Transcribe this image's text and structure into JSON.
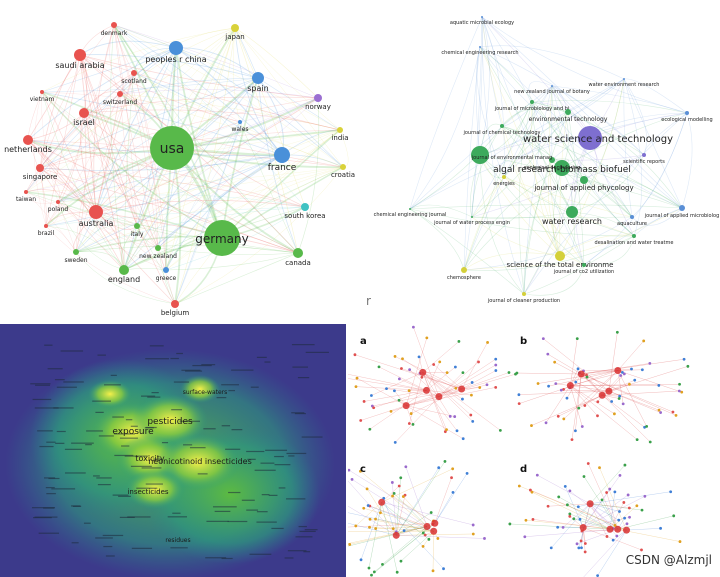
{
  "network_countries": {
    "nodes": [
      {
        "label": "usa"
      },
      {
        "label": "germany"
      },
      {
        "label": "peoples r china"
      },
      {
        "label": "france"
      },
      {
        "label": "spain"
      },
      {
        "label": "australia"
      },
      {
        "label": "japan"
      },
      {
        "label": "saudi arabia"
      },
      {
        "label": "israel"
      },
      {
        "label": "netherlands"
      },
      {
        "label": "singapore"
      },
      {
        "label": "canada"
      },
      {
        "label": "england"
      },
      {
        "label": "south korea"
      },
      {
        "label": "norway"
      },
      {
        "label": "india"
      },
      {
        "label": "croatia"
      },
      {
        "label": "denmark"
      },
      {
        "label": "scotland"
      },
      {
        "label": "switzerland"
      },
      {
        "label": "vietnam"
      },
      {
        "label": "wales"
      },
      {
        "label": "taiwan"
      },
      {
        "label": "poland"
      },
      {
        "label": "brazil"
      },
      {
        "label": "italy"
      },
      {
        "label": "new zealand"
      },
      {
        "label": "sweden"
      },
      {
        "label": "greece"
      },
      {
        "label": "belgium"
      }
    ],
    "colors": {
      "red": "#e8534f",
      "green": "#58b94a",
      "blue": "#4a90d9",
      "yellow": "#d9d23a",
      "purple": "#9b6fd1",
      "cyan": "#3fc2c2"
    }
  },
  "network_journals": {
    "nodes": [
      {
        "label": "water science and technology"
      },
      {
        "label": "algal research-biomass biofuel"
      },
      {
        "label": "water research"
      },
      {
        "label": "journal of applied phycology"
      },
      {
        "label": "science of the total environme"
      },
      {
        "label": "aquatic microbial ecology"
      },
      {
        "label": "chemical engineering research"
      },
      {
        "label": "new zealand journal of botany"
      },
      {
        "label": "water environment research"
      },
      {
        "label": "journal of microbiology and bi"
      },
      {
        "label": "environmental technology"
      },
      {
        "label": "journal of chemical technology"
      },
      {
        "label": "ecological modelling"
      },
      {
        "label": "scientific reports"
      },
      {
        "label": "ecological engineering"
      },
      {
        "label": "journal of environmental manag"
      },
      {
        "label": "energies"
      },
      {
        "label": "chemical engineering journal"
      },
      {
        "label": "journal of water process engin"
      },
      {
        "label": "journal of applied microbiolog"
      },
      {
        "label": "aquaculture"
      },
      {
        "label": "desalination and water treatme"
      },
      {
        "label": "chemosphere"
      },
      {
        "label": "journal of co2 utilization"
      },
      {
        "label": "journal of cleaner production"
      }
    ],
    "cut_label": "r"
  },
  "heatmap": {
    "labels": [
      {
        "label": "exposure"
      },
      {
        "label": "pesticides"
      },
      {
        "label": "toxicity"
      },
      {
        "label": "neonicotinoid insecticides"
      },
      {
        "label": "insecticides"
      },
      {
        "label": "surface-waters"
      },
      {
        "label": "residues"
      }
    ]
  },
  "subpanels": {
    "labels": [
      {
        "label": "a"
      },
      {
        "label": "b"
      },
      {
        "label": "c"
      },
      {
        "label": "d"
      }
    ]
  },
  "watermark": "CSDN @Alzmjl"
}
